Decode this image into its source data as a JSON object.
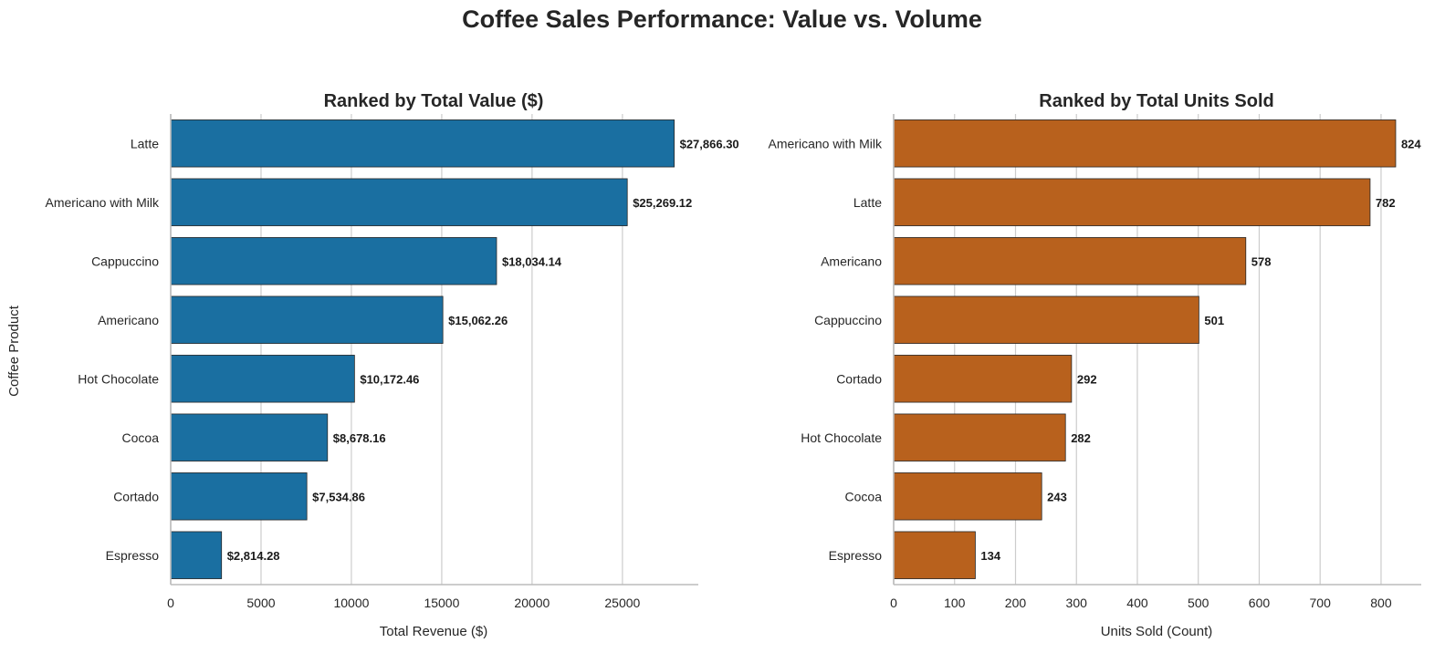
{
  "figure": {
    "suptitle": "Coffee Sales Performance: Value vs. Volume"
  },
  "colors": {
    "value_bar": "#1a6fa1",
    "units_bar": "#b8611d",
    "grid": "#cccccc",
    "spine": "#bbbbbb",
    "bar_edge": "#262626"
  },
  "chart_data": [
    {
      "type": "bar",
      "orientation": "horizontal",
      "title": "Ranked by Total Value ($)",
      "xlabel": "Total Revenue ($)",
      "ylabel": "Coffee Product",
      "xlim": [
        0,
        29200
      ],
      "xticks": [
        0,
        5000,
        10000,
        15000,
        20000,
        25000
      ],
      "grid": "vertical",
      "categories": [
        "Latte",
        "Americano with Milk",
        "Cappuccino",
        "Americano",
        "Hot Chocolate",
        "Cocoa",
        "Cortado",
        "Espresso"
      ],
      "values": [
        27866.3,
        25269.12,
        18034.14,
        15062.26,
        10172.46,
        8678.16,
        7534.86,
        2814.28
      ],
      "data_labels": [
        "$27,866.30",
        "$25,269.12",
        "$18,034.14",
        "$15,062.26",
        "$10,172.46",
        "$8,678.16",
        "$7,534.86",
        "$2,814.28"
      ]
    },
    {
      "type": "bar",
      "orientation": "horizontal",
      "title": "Ranked by Total Units Sold",
      "xlabel": "Units Sold (Count)",
      "ylabel": "",
      "xlim": [
        0,
        866
      ],
      "xticks": [
        0,
        100,
        200,
        300,
        400,
        500,
        600,
        700,
        800
      ],
      "grid": "vertical",
      "categories": [
        "Americano with Milk",
        "Latte",
        "Americano",
        "Cappuccino",
        "Cortado",
        "Hot Chocolate",
        "Cocoa",
        "Espresso"
      ],
      "values": [
        824,
        782,
        578,
        501,
        292,
        282,
        243,
        134
      ],
      "data_labels": [
        "824",
        "782",
        "578",
        "501",
        "292",
        "282",
        "243",
        "134"
      ]
    }
  ]
}
